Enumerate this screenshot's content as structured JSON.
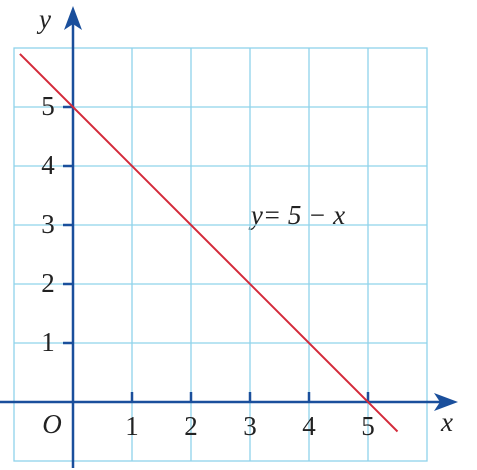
{
  "chart_data": {
    "type": "line",
    "x": [
      -0.9,
      5.5
    ],
    "series": [
      {
        "name": "y= 5 − x",
        "color": "#d42a3a",
        "values": [
          5.9,
          -0.5
        ]
      }
    ],
    "xlim": [
      -1,
      6
    ],
    "ylim": [
      -1,
      6
    ],
    "xticks": [
      1,
      2,
      3,
      4,
      5
    ],
    "yticks": [
      1,
      2,
      3,
      4,
      5
    ],
    "xlabel": "x",
    "ylabel": "y",
    "origin_label": "O",
    "grid": true,
    "grid_color": "#8fd3ea",
    "axis_color": "#1a4f9c"
  }
}
